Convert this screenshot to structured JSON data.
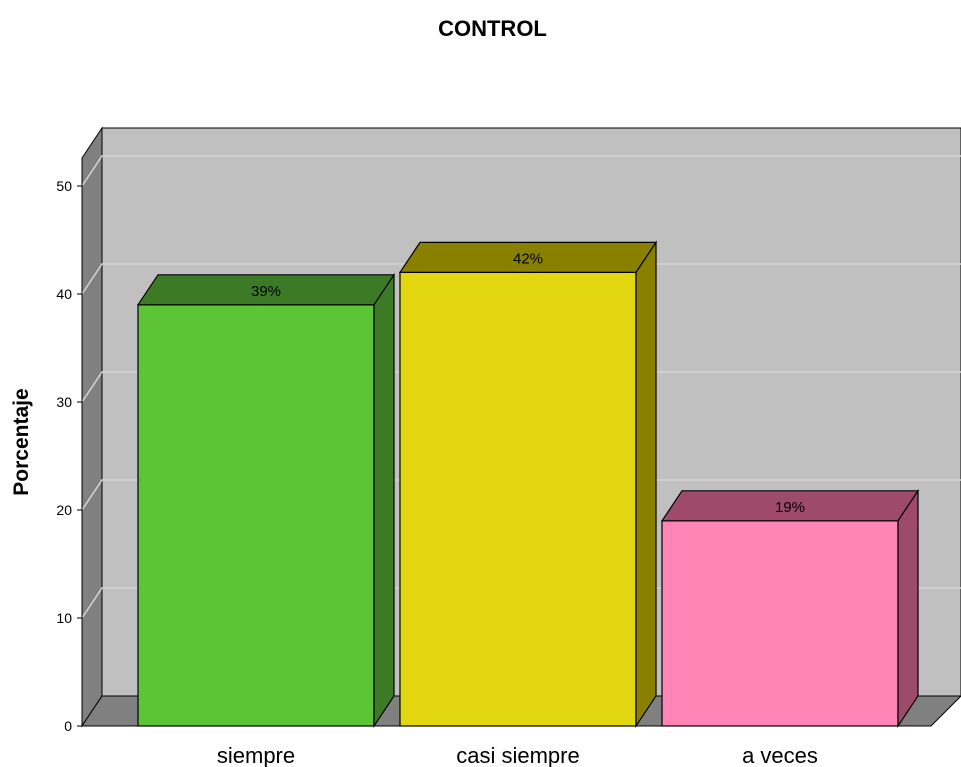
{
  "chart_data": {
    "type": "bar",
    "title": "CONTROL",
    "xlabel": "",
    "ylabel": "Porcentaje",
    "categories": [
      "siempre",
      "casi siempre",
      "a veces"
    ],
    "values": [
      39,
      42,
      19
    ],
    "data_labels": [
      "39%",
      "42%",
      "19%"
    ],
    "yticks": [
      "0",
      "10",
      "20",
      "30",
      "40",
      "50"
    ],
    "ylim": [
      0,
      50
    ],
    "grid": true,
    "style": "3d",
    "colors": {
      "front": [
        "#5dc337",
        "#e2d710",
        "#ff85b7"
      ],
      "top": [
        "#3c7a25",
        "#8a8000",
        "#9e4a6a"
      ],
      "side": [
        "#3c7a25",
        "#8a8000",
        "#9e4a6a"
      ],
      "wall": "#c0c0c0",
      "wall_side": "#808080",
      "grid": "#d4d4d4"
    }
  }
}
